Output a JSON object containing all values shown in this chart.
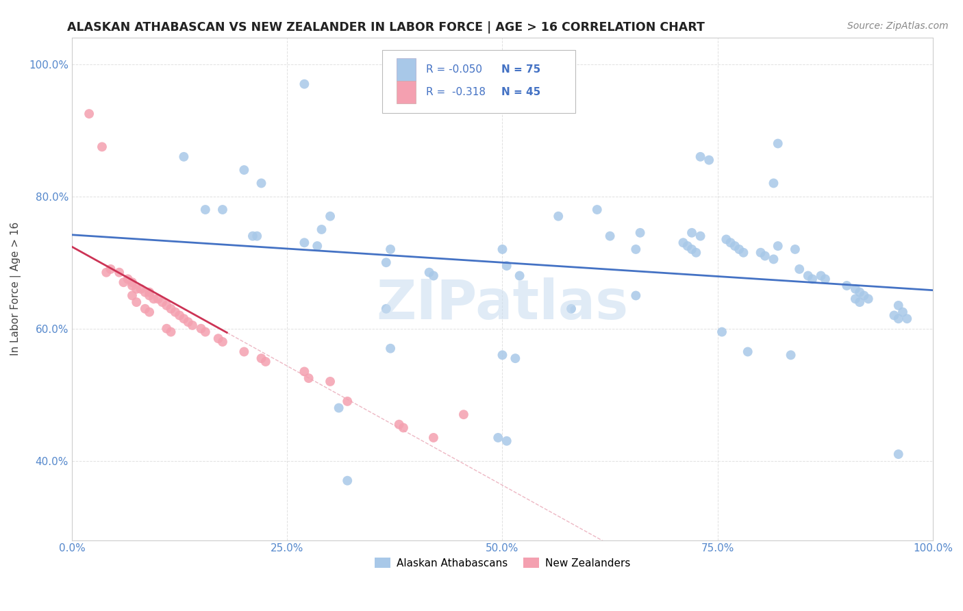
{
  "title": "ALASKAN ATHABASCAN VS NEW ZEALANDER IN LABOR FORCE | AGE > 16 CORRELATION CHART",
  "source": "Source: ZipAtlas.com",
  "ylabel": "In Labor Force | Age > 16",
  "xlim": [
    0.0,
    1.0
  ],
  "ylim": [
    0.28,
    1.04
  ],
  "xticks": [
    0.0,
    0.25,
    0.5,
    0.75,
    1.0
  ],
  "xticklabels": [
    "0.0%",
    "25.0%",
    "50.0%",
    "75.0%",
    "100.0%"
  ],
  "ytick_positions": [
    0.4,
    0.6,
    0.8,
    1.0
  ],
  "yticklabels": [
    "40.0%",
    "60.0%",
    "80.0%",
    "100.0%"
  ],
  "R_blue": -0.05,
  "N_blue": 75,
  "R_pink": -0.318,
  "N_pink": 45,
  "blue_color": "#A8C8E8",
  "pink_color": "#F4A0B0",
  "blue_line_color": "#4472C4",
  "pink_line_color": "#CC3355",
  "watermark": "ZIPatlas",
  "watermark_color": "#C8DCF0",
  "blue_scatter_x": [
    0.27,
    0.13,
    0.2,
    0.22,
    0.155,
    0.175,
    0.21,
    0.215,
    0.3,
    0.29,
    0.27,
    0.285,
    0.37,
    0.365,
    0.5,
    0.505,
    0.565,
    0.61,
    0.625,
    0.655,
    0.66,
    0.71,
    0.715,
    0.72,
    0.725,
    0.76,
    0.765,
    0.77,
    0.775,
    0.78,
    0.8,
    0.805,
    0.815,
    0.845,
    0.855,
    0.86,
    0.9,
    0.91,
    0.915,
    0.92,
    0.925,
    0.96,
    0.965,
    0.97,
    0.52,
    0.415,
    0.42,
    0.365,
    0.58,
    0.655,
    0.82,
    0.73,
    0.74,
    0.815,
    0.72,
    0.73,
    0.82,
    0.84,
    0.87,
    0.875,
    0.91,
    0.915,
    0.96,
    0.37,
    0.31,
    0.495,
    0.505,
    0.32,
    0.5,
    0.515,
    0.755,
    0.785,
    0.835,
    0.955,
    0.96
  ],
  "blue_scatter_y": [
    0.97,
    0.86,
    0.84,
    0.82,
    0.78,
    0.78,
    0.74,
    0.74,
    0.77,
    0.75,
    0.73,
    0.725,
    0.72,
    0.7,
    0.72,
    0.695,
    0.77,
    0.78,
    0.74,
    0.72,
    0.745,
    0.73,
    0.725,
    0.72,
    0.715,
    0.735,
    0.73,
    0.725,
    0.72,
    0.715,
    0.715,
    0.71,
    0.705,
    0.69,
    0.68,
    0.675,
    0.665,
    0.66,
    0.655,
    0.65,
    0.645,
    0.635,
    0.625,
    0.615,
    0.68,
    0.685,
    0.68,
    0.63,
    0.63,
    0.65,
    0.88,
    0.86,
    0.855,
    0.82,
    0.745,
    0.74,
    0.725,
    0.72,
    0.68,
    0.675,
    0.645,
    0.64,
    0.41,
    0.57,
    0.48,
    0.435,
    0.43,
    0.37,
    0.56,
    0.555,
    0.595,
    0.565,
    0.56,
    0.62,
    0.615
  ],
  "pink_scatter_x": [
    0.02,
    0.035,
    0.04,
    0.045,
    0.055,
    0.06,
    0.065,
    0.07,
    0.07,
    0.075,
    0.08,
    0.085,
    0.09,
    0.09,
    0.095,
    0.1,
    0.105,
    0.11,
    0.115,
    0.12,
    0.125,
    0.13,
    0.135,
    0.14,
    0.15,
    0.155,
    0.17,
    0.175,
    0.2,
    0.22,
    0.225,
    0.27,
    0.275,
    0.3,
    0.32,
    0.38,
    0.385,
    0.42,
    0.455,
    0.07,
    0.075,
    0.085,
    0.09,
    0.11,
    0.115
  ],
  "pink_scatter_y": [
    0.925,
    0.875,
    0.685,
    0.69,
    0.685,
    0.67,
    0.675,
    0.67,
    0.665,
    0.66,
    0.66,
    0.655,
    0.655,
    0.65,
    0.645,
    0.645,
    0.64,
    0.635,
    0.63,
    0.625,
    0.62,
    0.615,
    0.61,
    0.605,
    0.6,
    0.595,
    0.585,
    0.58,
    0.565,
    0.555,
    0.55,
    0.535,
    0.525,
    0.52,
    0.49,
    0.455,
    0.45,
    0.435,
    0.47,
    0.65,
    0.64,
    0.63,
    0.625,
    0.6,
    0.595
  ],
  "label_blue": "Alaskan Athabascans",
  "label_pink": "New Zealanders",
  "grid_color": "#CCCCCC",
  "background_color": "#FFFFFF"
}
